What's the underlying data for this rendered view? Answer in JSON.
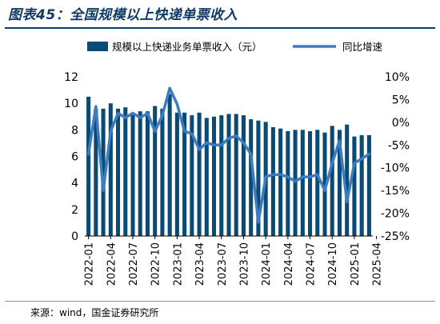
{
  "header": {
    "title": "图表45：全国规模以上快递单票收入"
  },
  "footer": {
    "source": "来源：wind，国金证券研究所"
  },
  "colors": {
    "bar": "#0a4a73",
    "line": "#3d7cc0",
    "rule": "#0d3a66"
  },
  "chart_data": {
    "type": "bar",
    "series": [
      {
        "name": "规模以上快递业务单票收入（元）",
        "type": "bar",
        "axis": "left",
        "values": [
          10.5,
          9.6,
          9.6,
          10.0,
          9.6,
          9.7,
          9.3,
          9.4,
          9.4,
          9.8,
          9.6,
          10.7,
          9.3,
          9.3,
          9.1,
          9.3,
          8.9,
          9.0,
          9.1,
          9.2,
          9.2,
          9.1,
          8.8,
          8.7,
          8.6,
          8.2,
          8.1,
          7.9,
          8.0,
          8.0,
          7.9,
          8.0,
          7.8,
          8.3,
          8.0,
          8.4,
          7.5,
          7.6,
          7.6
        ]
      },
      {
        "name": "同比增速",
        "type": "line",
        "axis": "right",
        "values": [
          -7.0,
          3.5,
          -15.0,
          -2.0,
          2.0,
          1.0,
          2.0,
          1.0,
          2.0,
          -2.0,
          1.5,
          7.5,
          4.0,
          -2.0,
          -2.5,
          -6.0,
          -4.5,
          -5.0,
          -5.0,
          -3.5,
          -3.0,
          -4.5,
          -7.0,
          -22.0,
          -12.0,
          -11.5,
          -11.5,
          -12.0,
          -13.0,
          -12.0,
          -12.0,
          -11.5,
          -15.0,
          -9.0,
          -4.0,
          -17.5,
          -9.0,
          -8.0,
          -7.0
        ]
      }
    ],
    "x_tick_labels": [
      "2022-01",
      "2022-04",
      "2022-07",
      "2022-10",
      "2023-01",
      "2023-04",
      "2023-07",
      "2023-10",
      "2024-01",
      "2024-04",
      "2024-07",
      "2024-10",
      "2025-01",
      "2025-04"
    ],
    "y_left": {
      "min": 0,
      "max": 12,
      "ticks": [
        "0",
        "2",
        "4",
        "6",
        "8",
        "10",
        "12"
      ]
    },
    "y_right": {
      "min": -25,
      "max": 10,
      "ticks": [
        "-25%",
        "-20%",
        "-15%",
        "-10%",
        "-5%",
        "0%",
        "5%",
        "10%"
      ]
    },
    "legend_position": "top",
    "grid": false
  }
}
